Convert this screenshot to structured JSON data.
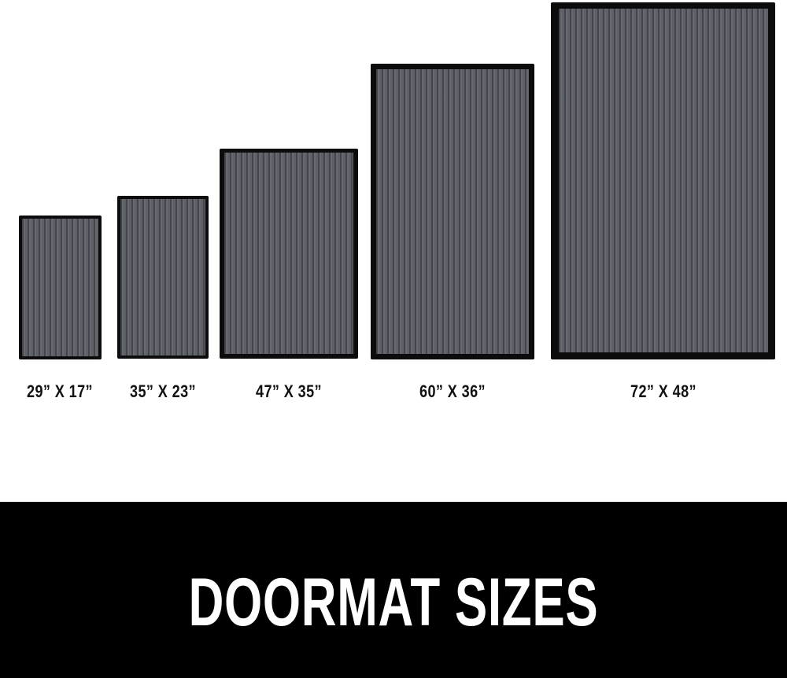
{
  "mats": [
    {
      "size_label": "29” X 17”"
    },
    {
      "size_label": "35” X 23”"
    },
    {
      "size_label": "47” X 35”"
    },
    {
      "size_label": "60” X 36”"
    },
    {
      "size_label": "72” X 48”"
    }
  ],
  "banner": {
    "title": "DOORMAT SIZES"
  },
  "colors": {
    "mat_pile": "#5d6066",
    "mat_border": "#0c0c0c",
    "banner_bg": "#000000",
    "banner_text": "#ffffff"
  }
}
